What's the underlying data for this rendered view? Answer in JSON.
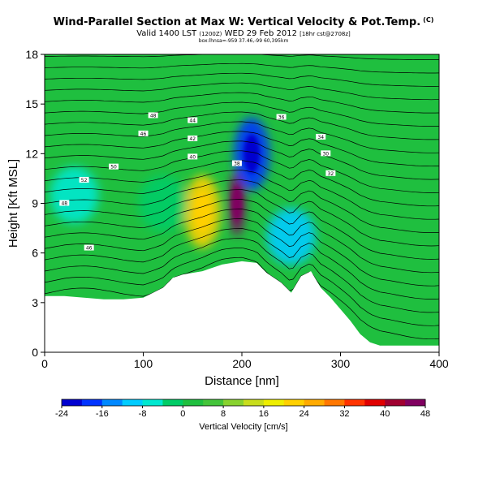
{
  "chart_data": {
    "type": "heatmap",
    "title": "Wind-Parallel Section at Max W: Vertical Velocity & Pot.Temp.",
    "title_mark": "(C)",
    "subtitle_main": "Valid 1400 LST",
    "subtitle_mid": "(1200Z)",
    "subtitle_date": "WED 29 Feb 2012",
    "subtitle_small": "[18hr cst@2708z]",
    "bbox_text": "box:lhnsa=-959 37.46,-99 60,395km",
    "xlabel": "Distance [nm]",
    "ylabel": "Height [Kft MSL]",
    "xlim": [
      0,
      400
    ],
    "ylim": [
      0,
      18
    ],
    "xticks": [
      0,
      100,
      200,
      300,
      400
    ],
    "yticks": [
      0,
      3,
      6,
      9,
      12,
      15,
      18
    ],
    "colorbar": {
      "label": "Vertical Velocity [cm/s]",
      "ticks": [
        -24,
        -16,
        -8,
        0,
        8,
        16,
        24,
        32,
        40,
        48
      ],
      "range": [
        -24,
        48
      ],
      "colors": [
        "#0000d0",
        "#0033ff",
        "#0088ff",
        "#00ccff",
        "#00e8d0",
        "#00cc66",
        "#1fbf3f",
        "#44c43a",
        "#88d22e",
        "#c8dd1c",
        "#eeee00",
        "#ffd000",
        "#ffaa00",
        "#ff7700",
        "#ff3300",
        "#e00000",
        "#a00030",
        "#800060"
      ]
    },
    "contour_labels": [
      "48",
      "46",
      "44",
      "42",
      "40",
      "38",
      "36",
      "34",
      "30",
      "32",
      "50",
      "52"
    ],
    "terrain_kft": [
      [
        0,
        3.4
      ],
      [
        20,
        3.4
      ],
      [
        40,
        3.3
      ],
      [
        60,
        3.2
      ],
      [
        80,
        3.2
      ],
      [
        100,
        3.3
      ],
      [
        120,
        3.9
      ],
      [
        130,
        4.5
      ],
      [
        140,
        4.7
      ],
      [
        160,
        4.9
      ],
      [
        180,
        5.3
      ],
      [
        200,
        5.5
      ],
      [
        215,
        5.4
      ],
      [
        225,
        4.8
      ],
      [
        240,
        4.2
      ],
      [
        250,
        3.6
      ],
      [
        260,
        4.6
      ],
      [
        270,
        4.9
      ],
      [
        280,
        3.9
      ],
      [
        290,
        3.3
      ],
      [
        300,
        2.6
      ],
      [
        310,
        1.9
      ],
      [
        320,
        1.1
      ],
      [
        330,
        0.6
      ],
      [
        340,
        0.4
      ],
      [
        360,
        0.4
      ],
      [
        400,
        0.4
      ]
    ],
    "w_features_cms": [
      {
        "x": 160,
        "z": 8.5,
        "w": 20
      },
      {
        "x": 195,
        "z": 9.0,
        "w": 44
      },
      {
        "x": 210,
        "z": 12.0,
        "w": -20
      },
      {
        "x": 250,
        "z": 7.0,
        "w": -10
      },
      {
        "x": 30,
        "z": 9.5,
        "w": -5
      },
      {
        "x": 120,
        "z": 9.0,
        "w": -4
      }
    ]
  }
}
